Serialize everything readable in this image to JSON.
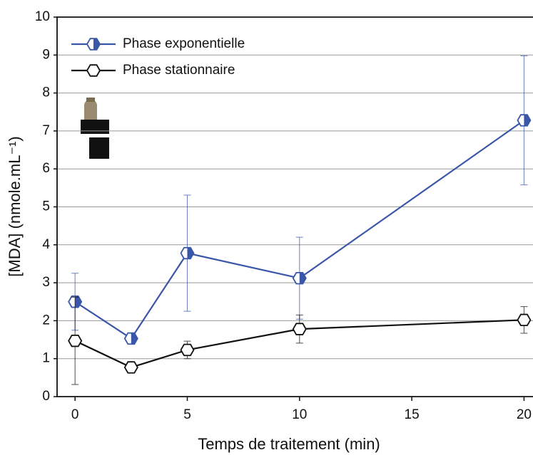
{
  "chart_data": {
    "type": "line",
    "x_label": "Temps de traitement (min)",
    "y_label": "[MDA] (nmole.mL⁻¹)",
    "x": [
      0,
      2.5,
      5,
      10,
      20
    ],
    "series": [
      {
        "name": "Phase exponentielle",
        "color": "#3a56a8",
        "values": [
          2.5,
          1.53,
          3.78,
          3.12,
          7.28
        ],
        "errors": [
          0.75,
          0.1,
          1.53,
          1.08,
          1.7
        ]
      },
      {
        "name": "Phase stationnaire",
        "color": "#111111",
        "values": [
          1.47,
          0.77,
          1.23,
          1.78,
          2.02
        ],
        "errors": [
          1.15,
          0.1,
          0.23,
          0.37,
          0.35
        ]
      }
    ],
    "xlim": [
      -0.8,
      20.4
    ],
    "ylim": [
      0,
      10
    ],
    "xticks": [
      0,
      5,
      10,
      15,
      20
    ],
    "yticks": [
      0,
      1,
      2,
      3,
      4,
      5,
      6,
      7,
      8,
      9,
      10
    ],
    "grid": true,
    "legend": "upper left"
  }
}
